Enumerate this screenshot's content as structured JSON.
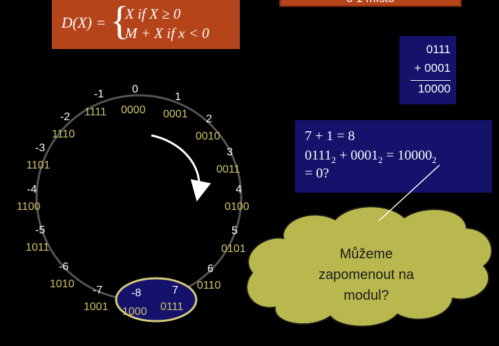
{
  "banner": {
    "text": "o 1 místo"
  },
  "formula": {
    "lhs": "D(X) =",
    "case1": "X if X ≥ 0",
    "case2": "M + X if x < 0"
  },
  "binary_sum": {
    "a": "0111",
    "b": "+ 0001",
    "result": "10000"
  },
  "equation": {
    "line1": "7 + 1 = 8",
    "line2_parts": [
      "0111",
      "2",
      " + 0001",
      "2",
      " = 10000",
      "2"
    ],
    "line3": "= 0?"
  },
  "ring": [
    {
      "n": "0",
      "b": "0000"
    },
    {
      "n": "1",
      "b": "0001"
    },
    {
      "n": "2",
      "b": "0010"
    },
    {
      "n": "3",
      "b": "0011"
    },
    {
      "n": "4",
      "b": "0100"
    },
    {
      "n": "5",
      "b": "0101"
    },
    {
      "n": "6",
      "b": "0110"
    },
    {
      "n": "7",
      "b": "0111"
    },
    {
      "n": "-8",
      "b": "1000"
    },
    {
      "n": "-7",
      "b": "1001"
    },
    {
      "n": "-6",
      "b": "1010"
    },
    {
      "n": "-5",
      "b": "1011"
    },
    {
      "n": "-4",
      "b": "1100"
    },
    {
      "n": "-3",
      "b": "1101"
    },
    {
      "n": "-2",
      "b": "1110"
    },
    {
      "n": "-1",
      "b": "1111"
    }
  ],
  "callout": {
    "lines": [
      "Můžeme",
      "zapomenout na",
      "modul?"
    ]
  },
  "colors": {
    "formula_bg": "#b5441b",
    "box_bg": "#14126b",
    "binary_text": "#cfc36c",
    "cloud_fill": "#b9b84f",
    "highlight_ring": "#d8cc7a"
  }
}
